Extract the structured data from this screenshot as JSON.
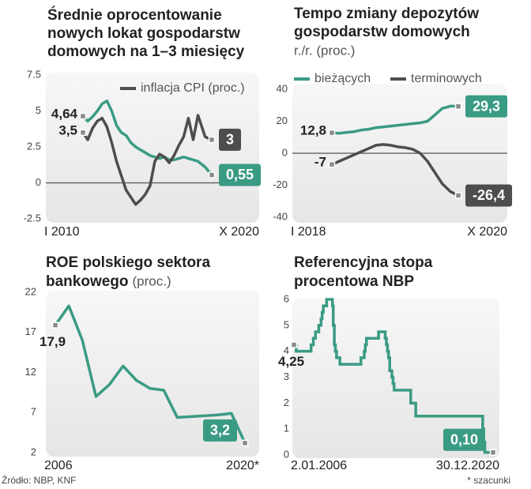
{
  "chart_data": [
    {
      "type": "line",
      "title": [
        "Średnie oprocentowanie",
        "nowych lokat gospodarstw",
        "domowych na 1–3 miesięcy"
      ],
      "x": [
        2010,
        2010.4,
        2010.8,
        2011.2,
        2011.6,
        2012,
        2012.4,
        2012.8,
        2013.2,
        2013.6,
        2014,
        2014.4,
        2014.8,
        2015.2,
        2015.6,
        2016,
        2016.4,
        2016.8,
        2017.2,
        2017.6,
        2018,
        2018.4,
        2018.8,
        2019.2,
        2019.6,
        2020.2,
        2020.75
      ],
      "xlim": [
        2010,
        2020.75
      ],
      "xticks": [
        {
          "value": 2010,
          "label": "I 2010"
        },
        {
          "value": 2020.75,
          "label": "X 2020"
        }
      ],
      "ylim": [
        -2.5,
        7.5
      ],
      "yticks": [
        -2.5,
        0,
        2.5,
        5,
        7.5
      ],
      "zero_line": true,
      "series": [
        {
          "color": "#3a9b83",
          "values": [
            4.64,
            4.3,
            4.6,
            5.0,
            5.5,
            5.7,
            5.0,
            4.0,
            3.5,
            3.3,
            2.8,
            2.5,
            2.3,
            2.1,
            1.9,
            1.8,
            1.7,
            1.8,
            1.6,
            1.6,
            1.7,
            1.8,
            1.7,
            1.6,
            1.5,
            1.1,
            0.55
          ],
          "value_labels": [
            "4,64",
            null,
            null,
            null,
            null,
            null,
            null,
            null,
            null,
            null,
            null,
            null,
            null,
            null,
            null,
            null,
            null,
            null,
            null,
            null,
            null,
            null,
            null,
            null,
            null,
            null,
            "0,55"
          ]
        },
        {
          "name": "inflacja CPI (proc.)",
          "color": "#4d4d4d",
          "values": [
            3.5,
            3.0,
            3.8,
            4.3,
            4.5,
            3.9,
            2.8,
            1.5,
            0.5,
            -0.5,
            -1.0,
            -1.5,
            -1.2,
            -0.8,
            -0.2,
            1.5,
            2.0,
            1.8,
            1.4,
            1.9,
            2.6,
            3.2,
            4.5,
            3.0,
            4.7,
            3.2,
            3.0
          ],
          "value_labels": [
            "3,5",
            null,
            null,
            null,
            null,
            null,
            null,
            null,
            null,
            null,
            null,
            null,
            null,
            null,
            null,
            null,
            null,
            null,
            null,
            null,
            null,
            null,
            null,
            null,
            null,
            null,
            "3"
          ]
        }
      ]
    },
    {
      "type": "line",
      "title": [
        "Tempo zmiany depozytów",
        "gospodarstw domowych"
      ],
      "subtitle": "r./r. (proc.)",
      "x": [
        2018,
        2018.16,
        2018.32,
        2018.48,
        2018.64,
        2018.8,
        2018.96,
        2019.12,
        2019.28,
        2019.44,
        2019.6,
        2019.76,
        2019.92,
        2020.08,
        2020.24,
        2020.4,
        2020.58,
        2020.75
      ],
      "xlim": [
        2018,
        2020.75
      ],
      "xticks": [
        {
          "value": 2018,
          "label": "I 2018"
        },
        {
          "value": 2020.75,
          "label": "X 2020"
        }
      ],
      "ylim": [
        -40,
        40
      ],
      "yticks": [
        -40,
        -20,
        0,
        20,
        40
      ],
      "zero_line": true,
      "series": [
        {
          "name": "bieżących",
          "color": "#3a9b83",
          "values": [
            12.8,
            12.5,
            13.0,
            13.5,
            14.5,
            15.0,
            16.0,
            16.5,
            17.0,
            17.5,
            18.0,
            18.5,
            19.0,
            20.0,
            24.0,
            28.0,
            29.5,
            29.3
          ],
          "value_labels": [
            "12,8",
            null,
            null,
            null,
            null,
            null,
            null,
            null,
            null,
            null,
            null,
            null,
            null,
            null,
            null,
            null,
            null,
            "29,3"
          ]
        },
        {
          "name": "terminowych",
          "color": "#4d4d4d",
          "values": [
            -7,
            -5,
            -3,
            -1,
            1,
            3,
            5,
            5.5,
            5,
            4,
            3.5,
            2.5,
            0,
            -5,
            -12,
            -19,
            -24,
            -26.4
          ],
          "value_labels": [
            "-7",
            null,
            null,
            null,
            null,
            null,
            null,
            null,
            null,
            null,
            null,
            null,
            null,
            null,
            null,
            null,
            null,
            "-26,4"
          ]
        }
      ]
    },
    {
      "type": "line",
      "title": [
        "ROE polskiego sektora",
        "bankowego"
      ],
      "subtitle": "(proc.)",
      "x": [
        2006,
        2007,
        2008,
        2009,
        2010,
        2011,
        2012,
        2013,
        2014,
        2015,
        2016,
        2017,
        2018,
        2019,
        2020
      ],
      "xlim": [
        2006,
        2020
      ],
      "xticks": [
        2006,
        {
          "value": 2020,
          "label": "2020*"
        }
      ],
      "ylim": [
        2,
        22
      ],
      "yticks": [
        2,
        7,
        12,
        17,
        22
      ],
      "series": [
        {
          "color": "#3a9b83",
          "values": [
            17.9,
            20.3,
            16.0,
            9.0,
            10.5,
            12.8,
            11.0,
            10.0,
            9.8,
            6.4,
            6.5,
            6.6,
            6.7,
            6.9,
            3.2
          ],
          "value_labels": [
            "17,9",
            null,
            null,
            null,
            null,
            null,
            null,
            null,
            null,
            null,
            null,
            null,
            null,
            null,
            "3,2"
          ]
        }
      ]
    },
    {
      "type": "step",
      "title": [
        "Referencyjna stopa",
        "procentowa NBP"
      ],
      "x": [
        2006.0,
        2006.17,
        2007.29,
        2007.46,
        2007.62,
        2007.87,
        2008.04,
        2008.12,
        2008.21,
        2008.46,
        2008.9,
        2008.96,
        2009.04,
        2009.12,
        2009.21,
        2009.46,
        2011.04,
        2011.29,
        2011.37,
        2011.46,
        2012.37,
        2012.87,
        2012.96,
        2013.04,
        2013.12,
        2013.21,
        2013.37,
        2013.46,
        2013.54,
        2014.79,
        2015.17,
        2020.21,
        2020.29,
        2020.37,
        2020.99
      ],
      "xlim": [
        2006.0,
        2020.99
      ],
      "xticks": [
        {
          "value": 2006.0,
          "label": "2.01.2006"
        },
        {
          "value": 2020.99,
          "label": "30.12.2020"
        }
      ],
      "ylim": [
        0,
        6
      ],
      "yticks": [
        0,
        1,
        2,
        3,
        4,
        5,
        6
      ],
      "series": [
        {
          "color": "#3a9b83",
          "values": [
            4.25,
            4.0,
            4.25,
            4.5,
            4.75,
            5.0,
            5.25,
            5.5,
            5.75,
            6.0,
            5.75,
            5.0,
            4.25,
            4.0,
            3.75,
            3.5,
            3.75,
            4.0,
            4.25,
            4.5,
            4.75,
            4.5,
            4.25,
            4.0,
            3.75,
            3.25,
            3.0,
            2.75,
            2.5,
            2.0,
            1.5,
            1.0,
            0.5,
            0.1,
            0.1
          ],
          "value_labels": [
            "4,25",
            null,
            null,
            null,
            null,
            null,
            null,
            null,
            null,
            null,
            null,
            null,
            null,
            null,
            null,
            null,
            null,
            null,
            null,
            null,
            null,
            null,
            null,
            null,
            null,
            null,
            null,
            null,
            null,
            null,
            null,
            null,
            null,
            null,
            "0,10"
          ]
        }
      ]
    }
  ],
  "source": "Źródło: NBP, KNF",
  "footnote": "* szacunki"
}
